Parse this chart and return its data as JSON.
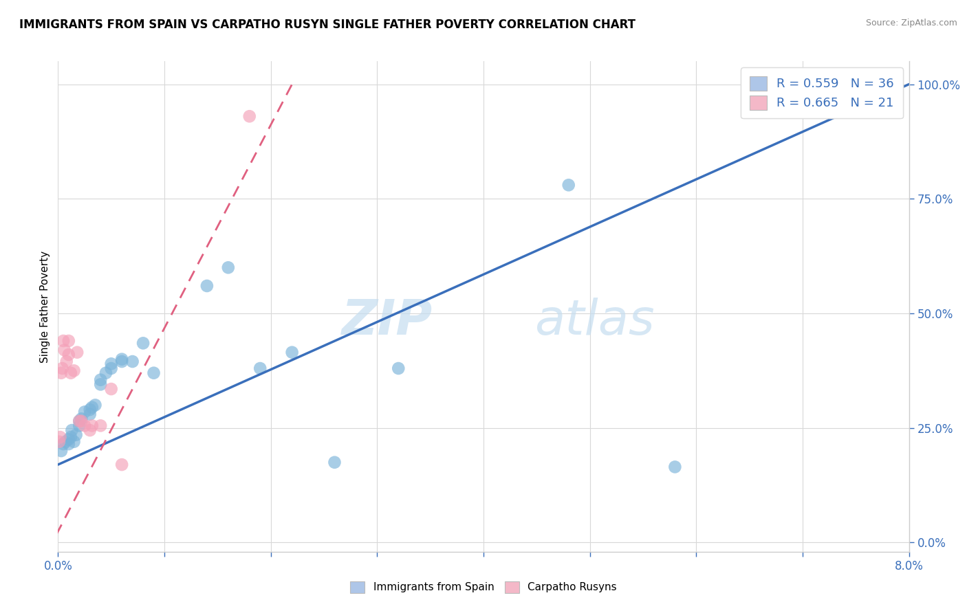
{
  "title": "IMMIGRANTS FROM SPAIN VS CARPATHO RUSYN SINGLE FATHER POVERTY CORRELATION CHART",
  "source": "Source: ZipAtlas.com",
  "ylabel": "Single Father Poverty",
  "ylabel_right_ticks": [
    "0.0%",
    "25.0%",
    "50.0%",
    "75.0%",
    "100.0%"
  ],
  "ylabel_right_vals": [
    0.0,
    0.25,
    0.5,
    0.75,
    1.0
  ],
  "xmin": 0.0,
  "xmax": 0.08,
  "ymin": -0.02,
  "ymax": 1.05,
  "legend_color1": "#aec6e8",
  "legend_color2": "#f4b8c8",
  "spain_scatter_x": [
    0.0003,
    0.0005,
    0.0007,
    0.001,
    0.001,
    0.0012,
    0.0013,
    0.0015,
    0.0017,
    0.002,
    0.002,
    0.0022,
    0.0025,
    0.003,
    0.003,
    0.0032,
    0.0035,
    0.004,
    0.004,
    0.0045,
    0.005,
    0.005,
    0.006,
    0.006,
    0.007,
    0.008,
    0.009,
    0.014,
    0.016,
    0.019,
    0.022,
    0.026,
    0.032,
    0.048,
    0.058,
    0.075
  ],
  "spain_scatter_y": [
    0.2,
    0.215,
    0.22,
    0.215,
    0.225,
    0.23,
    0.245,
    0.22,
    0.235,
    0.255,
    0.265,
    0.27,
    0.285,
    0.28,
    0.29,
    0.295,
    0.3,
    0.345,
    0.355,
    0.37,
    0.38,
    0.39,
    0.4,
    0.395,
    0.395,
    0.435,
    0.37,
    0.56,
    0.6,
    0.38,
    0.415,
    0.175,
    0.38,
    0.78,
    0.165,
    1.0
  ],
  "rusyn_scatter_x": [
    0.0001,
    0.0002,
    0.0003,
    0.0004,
    0.0005,
    0.0006,
    0.0008,
    0.001,
    0.001,
    0.0012,
    0.0015,
    0.0018,
    0.002,
    0.0022,
    0.0025,
    0.003,
    0.0032,
    0.004,
    0.005,
    0.006,
    0.018
  ],
  "rusyn_scatter_y": [
    0.22,
    0.23,
    0.37,
    0.38,
    0.44,
    0.42,
    0.395,
    0.44,
    0.41,
    0.37,
    0.375,
    0.415,
    0.265,
    0.265,
    0.255,
    0.245,
    0.255,
    0.255,
    0.335,
    0.17,
    0.93
  ],
  "spain_line_x": [
    0.0,
    0.08
  ],
  "spain_line_y": [
    0.17,
    1.0
  ],
  "rusyn_line_x": [
    -0.001,
    0.022
  ],
  "rusyn_line_y": [
    -0.02,
    1.0
  ],
  "spain_color": "#7ab3d9",
  "rusyn_color": "#f4a0b8",
  "spain_line_color": "#3a6fbb",
  "rusyn_line_color": "#e06080",
  "bg_color": "#ffffff",
  "grid_color": "#d8d8d8"
}
